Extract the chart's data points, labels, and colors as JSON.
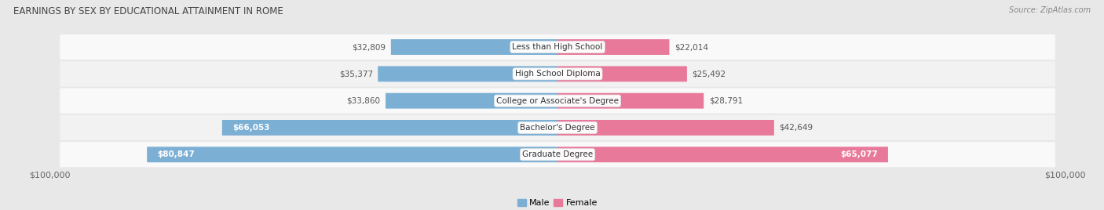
{
  "title": "EARNINGS BY SEX BY EDUCATIONAL ATTAINMENT IN ROME",
  "source": "Source: ZipAtlas.com",
  "categories": [
    "Less than High School",
    "High School Diploma",
    "College or Associate's Degree",
    "Bachelor's Degree",
    "Graduate Degree"
  ],
  "male_values": [
    32809,
    35377,
    33860,
    66053,
    80847
  ],
  "female_values": [
    22014,
    25492,
    28791,
    42649,
    65077
  ],
  "male_color": "#7bafd4",
  "female_color": "#e8799a",
  "max_value": 100000,
  "bg_color": "#e8e8e8",
  "row_colors": [
    "#f9f9f9",
    "#f2f2f2"
  ],
  "xlabel_left": "$100,000",
  "xlabel_right": "$100,000",
  "label_inside_threshold": 50000,
  "title_color": "#444444",
  "source_color": "#888888",
  "value_color_outside": "#555555",
  "value_color_inside": "#ffffff"
}
